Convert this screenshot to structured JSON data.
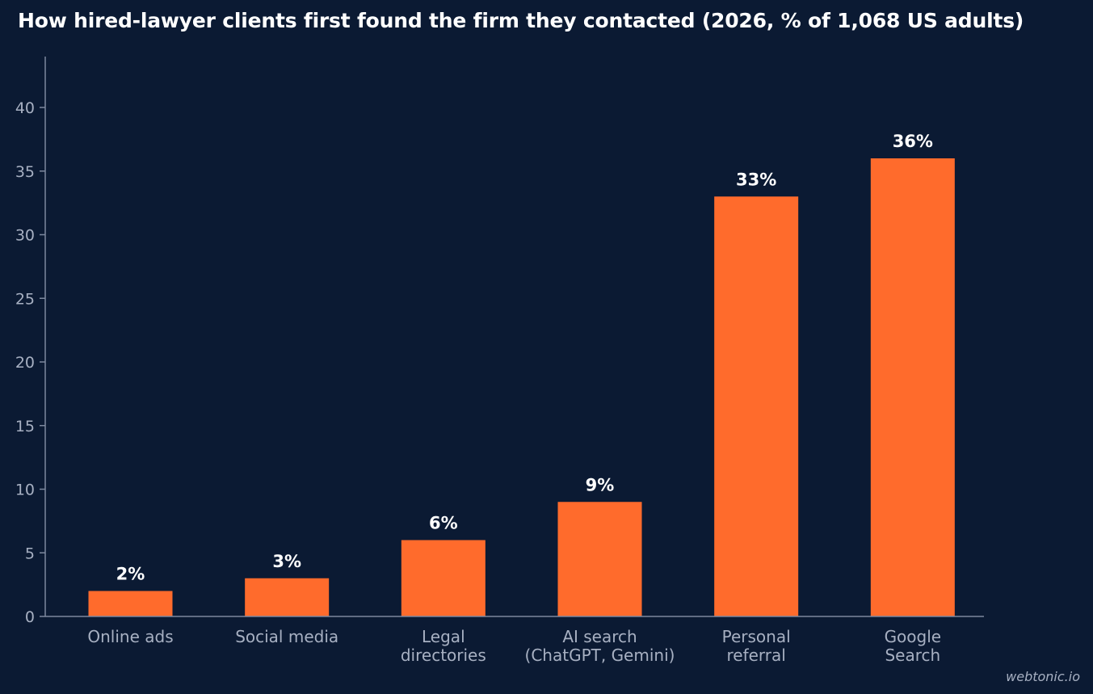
{
  "chart_data": {
    "type": "bar",
    "title": "How hired-lawyer clients first found the firm they contacted (2026, % of 1,068 US adults)",
    "categories": [
      [
        "Online ads"
      ],
      [
        "Social media"
      ],
      [
        "Legal",
        "directories"
      ],
      [
        "AI search",
        "(ChatGPT, Gemini)"
      ],
      [
        "Personal",
        "referral"
      ],
      [
        "Google",
        "Search"
      ]
    ],
    "values": [
      2,
      3,
      6,
      9,
      33,
      36
    ],
    "data_labels": [
      "2%",
      "3%",
      "6%",
      "9%",
      "33%",
      "36%"
    ],
    "ylim": [
      0,
      44
    ],
    "yticks": [
      0,
      5,
      10,
      15,
      20,
      25,
      30,
      35,
      40
    ],
    "xlabel": "",
    "ylabel": "",
    "grid": false,
    "bar_color": "#ff6b2c",
    "background_color": "#0b1a33",
    "axis_color": "#7d889e"
  },
  "watermark": "webtonic.io"
}
